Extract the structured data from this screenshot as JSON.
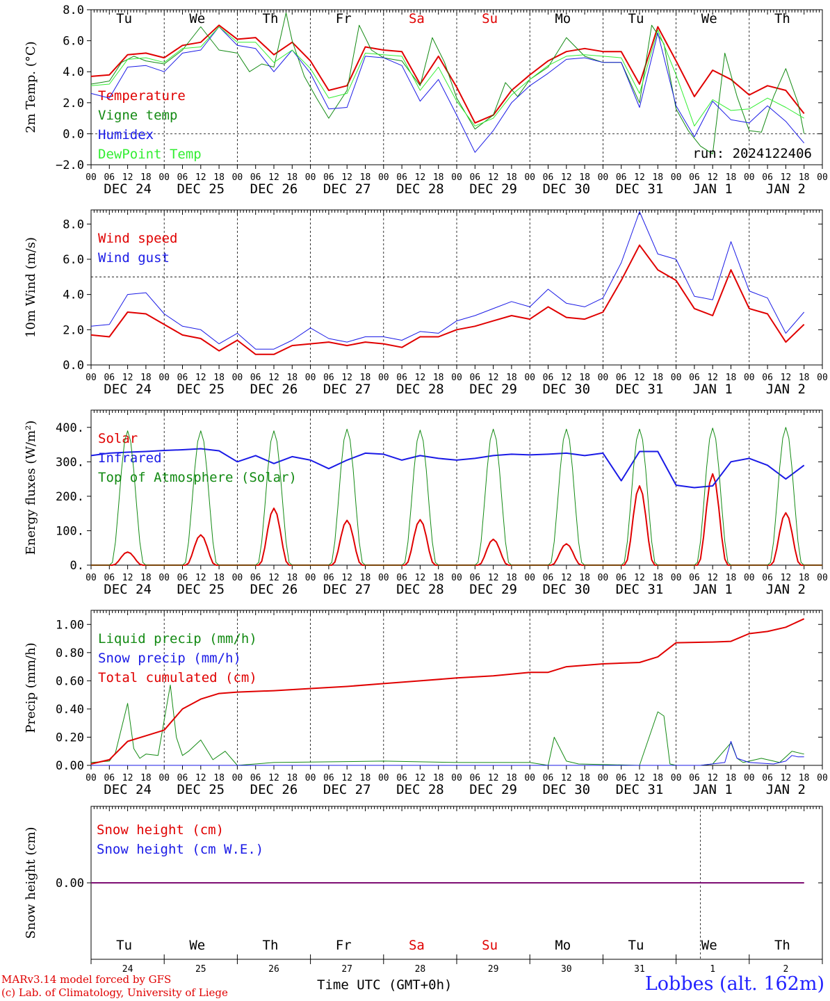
{
  "colors": {
    "red": "#e00000",
    "green": "#138a13",
    "blue": "#1a1ae6",
    "light_green": "#33ee33",
    "black": "#000000"
  },
  "weekdays": [
    {
      "label": "Tu",
      "color": "#000000"
    },
    {
      "label": "We",
      "color": "#000000"
    },
    {
      "label": "Th",
      "color": "#000000"
    },
    {
      "label": "Fr",
      "color": "#000000"
    },
    {
      "label": "Sa",
      "color": "#e00000"
    },
    {
      "label": "Su",
      "color": "#e00000"
    },
    {
      "label": "Mo",
      "color": "#000000"
    },
    {
      "label": "Tu",
      "color": "#000000"
    },
    {
      "label": "We",
      "color": "#000000"
    },
    {
      "label": "Th",
      "color": "#000000"
    }
  ],
  "date_labels": [
    "DEC 24",
    "DEC 25",
    "DEC 26",
    "DEC 27",
    "DEC 28",
    "DEC 29",
    "DEC 30",
    "DEC 31",
    "JAN  1",
    "JAN  2"
  ],
  "hour_ticks": [
    "00",
    "06",
    "12",
    "18"
  ],
  "bottom_days": [
    "24",
    "25",
    "26",
    "27",
    "28",
    "29",
    "30",
    "31",
    "1",
    "2"
  ],
  "run_label": "run: 2024122406",
  "footer": {
    "credit_line1": "MARv3.14 model forced by GFS",
    "credit_line2": "(c) Lab. of Climatology, University of Liege",
    "xaxis_title": "Time UTC (GMT+0h)",
    "station": "Lobbes (alt. 162m)"
  },
  "chart_data": [
    {
      "type": "line",
      "ylabel": "2m Temp. (°C)",
      "ylim": [
        -2,
        8
      ],
      "yticks": [
        "8.0",
        "6.0",
        "4.0",
        "2.0",
        "0.0",
        "−2.0"
      ],
      "ytick_values": [
        8,
        6,
        4,
        2,
        0,
        -2
      ],
      "ref_line": 0,
      "x_unit": "hours since Dec 24 00 UTC",
      "series": [
        {
          "name": "Temperature",
          "color": "#e00000",
          "width": 2,
          "x": [
            0,
            6,
            12,
            18,
            24,
            30,
            36,
            42,
            48,
            54,
            60,
            66,
            72,
            78,
            84,
            90,
            96,
            102,
            108,
            114,
            120,
            126,
            132,
            138,
            144,
            150,
            156,
            162,
            168,
            174,
            180,
            186,
            192,
            198,
            204,
            210,
            216,
            222,
            228,
            234
          ],
          "values": [
            3.7,
            3.8,
            5.1,
            5.2,
            4.9,
            5.7,
            5.9,
            7.0,
            6.1,
            6.2,
            5.1,
            5.9,
            4.7,
            2.8,
            3.1,
            5.6,
            5.4,
            5.3,
            3.2,
            5.0,
            3.0,
            0.7,
            1.2,
            2.8,
            3.8,
            4.7,
            5.3,
            5.5,
            5.3,
            5.3,
            3.2,
            6.9,
            4.7,
            2.4,
            4.1,
            3.5,
            2.5,
            3.1,
            2.8,
            1.3
          ]
        },
        {
          "name": "Vigne temp",
          "color": "#138a13",
          "width": 1,
          "x": [
            0,
            6,
            10,
            14,
            18,
            24,
            30,
            36,
            42,
            48,
            52,
            56,
            60,
            64,
            66,
            70,
            74,
            78,
            84,
            88,
            92,
            96,
            102,
            108,
            112,
            116,
            120,
            126,
            132,
            136,
            140,
            144,
            150,
            156,
            162,
            168,
            174,
            180,
            184,
            188,
            192,
            196,
            200,
            204,
            208,
            212,
            216,
            220,
            224,
            228,
            232,
            234
          ],
          "values": [
            3.2,
            3.4,
            4.6,
            5.0,
            4.7,
            4.5,
            5.4,
            6.9,
            5.4,
            5.2,
            4.0,
            4.5,
            4.3,
            7.8,
            6.0,
            3.7,
            2.3,
            1.0,
            2.8,
            7.0,
            5.4,
            4.9,
            4.7,
            3.1,
            6.2,
            4.6,
            2.3,
            0.3,
            1.2,
            3.3,
            2.4,
            3.5,
            4.3,
            6.2,
            5.0,
            4.6,
            4.6,
            2.0,
            7.0,
            5.8,
            1.6,
            0.2,
            -0.8,
            -1.3,
            5.2,
            2.4,
            0.2,
            0.1,
            2.4,
            4.2,
            2.0,
            0.0
          ]
        },
        {
          "name": "Humidex",
          "color": "#1a1ae6",
          "width": 1,
          "x": [
            0,
            6,
            12,
            18,
            24,
            30,
            36,
            42,
            48,
            54,
            60,
            66,
            72,
            78,
            84,
            90,
            96,
            102,
            108,
            114,
            120,
            126,
            132,
            138,
            144,
            150,
            156,
            162,
            168,
            174,
            180,
            186,
            192,
            198,
            204,
            210,
            216,
            222,
            228,
            234
          ],
          "values": [
            2.6,
            2.3,
            4.3,
            4.4,
            4.0,
            5.2,
            5.4,
            6.9,
            5.7,
            5.5,
            4.0,
            5.4,
            3.9,
            1.6,
            1.7,
            5.0,
            4.9,
            4.4,
            2.1,
            3.5,
            1.2,
            -1.2,
            0.2,
            2.0,
            3.1,
            3.9,
            4.8,
            4.9,
            4.6,
            4.6,
            1.7,
            6.5,
            1.8,
            -0.2,
            2.1,
            0.9,
            0.7,
            1.8,
            0.8,
            -0.6
          ]
        },
        {
          "name": "DewPoint Temp",
          "color": "#33ee33",
          "width": 1,
          "x": [
            0,
            6,
            12,
            18,
            24,
            30,
            36,
            42,
            48,
            54,
            60,
            66,
            72,
            78,
            84,
            90,
            96,
            102,
            108,
            114,
            120,
            126,
            132,
            138,
            144,
            150,
            156,
            162,
            168,
            174,
            180,
            186,
            192,
            198,
            204,
            210,
            216,
            222,
            228,
            234
          ],
          "values": [
            3.1,
            3.2,
            4.8,
            4.9,
            4.6,
            5.5,
            5.6,
            6.9,
            5.9,
            5.9,
            4.6,
            5.4,
            4.2,
            2.3,
            2.6,
            5.2,
            5.1,
            5.0,
            2.8,
            4.3,
            2.1,
            0.5,
            1.0,
            2.5,
            3.5,
            4.4,
            5.0,
            5.1,
            5.0,
            4.9,
            2.6,
            6.7,
            3.8,
            0.5,
            2.2,
            1.5,
            1.6,
            2.3,
            1.7,
            1.0
          ]
        }
      ]
    },
    {
      "type": "line",
      "ylabel": "10m Wind (m/s)",
      "ylim": [
        0,
        8.8
      ],
      "yticks": [
        "8.0",
        "6.0",
        "4.0",
        "2.0",
        "0.0"
      ],
      "ytick_values": [
        8,
        6,
        4,
        2,
        0
      ],
      "ref_line": 5,
      "series": [
        {
          "name": "Wind speed",
          "color": "#e00000",
          "width": 2,
          "x": [
            0,
            6,
            12,
            18,
            24,
            30,
            36,
            42,
            48,
            54,
            60,
            66,
            72,
            78,
            84,
            90,
            96,
            102,
            108,
            114,
            120,
            126,
            132,
            138,
            144,
            150,
            156,
            162,
            168,
            174,
            180,
            186,
            192,
            198,
            204,
            210,
            216,
            222,
            228,
            234
          ],
          "values": [
            1.7,
            1.6,
            3.0,
            2.9,
            2.3,
            1.7,
            1.5,
            0.8,
            1.4,
            0.6,
            0.6,
            1.1,
            1.2,
            1.3,
            1.1,
            1.3,
            1.2,
            1.0,
            1.6,
            1.6,
            2.0,
            2.2,
            2.5,
            2.8,
            2.6,
            3.3,
            2.7,
            2.6,
            3.0,
            4.8,
            6.8,
            5.4,
            4.8,
            3.2,
            2.8,
            5.4,
            3.2,
            2.9,
            1.3,
            2.3
          ]
        },
        {
          "name": "Wind gust",
          "color": "#1a1ae6",
          "width": 1,
          "x": [
            0,
            6,
            12,
            18,
            24,
            30,
            36,
            42,
            48,
            54,
            60,
            66,
            72,
            78,
            84,
            90,
            96,
            102,
            108,
            114,
            120,
            126,
            132,
            138,
            144,
            150,
            156,
            162,
            168,
            174,
            180,
            186,
            192,
            198,
            204,
            210,
            216,
            222,
            228,
            234
          ],
          "values": [
            2.2,
            2.3,
            4.0,
            4.1,
            2.9,
            2.2,
            2.0,
            1.2,
            1.8,
            0.9,
            0.9,
            1.4,
            2.1,
            1.5,
            1.3,
            1.6,
            1.6,
            1.4,
            1.9,
            1.8,
            2.5,
            2.8,
            3.2,
            3.6,
            3.3,
            4.3,
            3.5,
            3.3,
            3.8,
            5.8,
            8.7,
            6.3,
            6.0,
            3.9,
            3.7,
            7.0,
            4.2,
            3.8,
            1.8,
            3.0
          ]
        }
      ]
    },
    {
      "type": "line",
      "ylabel": "Energy fluxes (W/m²)",
      "ylim": [
        0,
        450
      ],
      "yticks": [
        "400.",
        "300.",
        "200.",
        "100.",
        "0."
      ],
      "ytick_values": [
        400,
        300,
        200,
        100,
        0
      ],
      "series": [
        {
          "name": "Solar",
          "color": "#e00000",
          "width": 2,
          "peak_hours": [
            12,
            36,
            60,
            84,
            108,
            132,
            156,
            180,
            204,
            228
          ],
          "peaks": [
            38,
            88,
            165,
            130,
            132,
            75,
            62,
            230,
            265,
            152
          ]
        },
        {
          "name": "Infrared",
          "color": "#1a1ae6",
          "width": 2,
          "x": [
            0,
            6,
            12,
            18,
            24,
            30,
            36,
            42,
            48,
            54,
            60,
            66,
            72,
            78,
            84,
            90,
            96,
            102,
            108,
            114,
            120,
            126,
            132,
            138,
            144,
            150,
            156,
            162,
            168,
            174,
            180,
            186,
            192,
            198,
            204,
            210,
            216,
            222,
            228,
            234
          ],
          "values": [
            318,
            325,
            328,
            330,
            333,
            335,
            338,
            332,
            300,
            318,
            295,
            315,
            305,
            280,
            305,
            325,
            322,
            305,
            318,
            310,
            305,
            310,
            318,
            322,
            320,
            322,
            325,
            318,
            325,
            245,
            330,
            330,
            232,
            225,
            230,
            300,
            310,
            290,
            250,
            290
          ]
        },
        {
          "name": "Top of Atmosphere (Solar)",
          "color": "#138a13",
          "width": 1,
          "peak_hours": [
            12,
            36,
            60,
            84,
            108,
            132,
            156,
            180,
            204,
            228
          ],
          "peaks": [
            390,
            390,
            390,
            395,
            392,
            395,
            395,
            395,
            398,
            400
          ]
        }
      ]
    },
    {
      "type": "line",
      "ylabel": "Precip (mm/h)",
      "ylim": [
        0,
        1.1
      ],
      "yticks": [
        "1.00",
        "0.80",
        "0.60",
        "0.40",
        "0.20",
        "0.00"
      ],
      "ytick_values": [
        1,
        0.8,
        0.6,
        0.4,
        0.2,
        0
      ],
      "series": [
        {
          "name": "Liquid precip (mm/h)",
          "color": "#138a13",
          "width": 1,
          "x": [
            0,
            6,
            8,
            12,
            14,
            16,
            18,
            22,
            26,
            28,
            30,
            32,
            36,
            40,
            44,
            48,
            60,
            96,
            120,
            144,
            150,
            152,
            156,
            160,
            180,
            186,
            188,
            190,
            192,
            200,
            204,
            210,
            212,
            214,
            220,
            226,
            230,
            234
          ],
          "values": [
            0.02,
            0.03,
            0.09,
            0.44,
            0.12,
            0.05,
            0.08,
            0.07,
            0.57,
            0.2,
            0.07,
            0.1,
            0.18,
            0.04,
            0.1,
            0.0,
            0.02,
            0.03,
            0.02,
            0.02,
            0.0,
            0.2,
            0.03,
            0.01,
            0.0,
            0.38,
            0.35,
            0.01,
            0.0,
            0.0,
            0.01,
            0.16,
            0.05,
            0.02,
            0.05,
            0.02,
            0.1,
            0.08
          ]
        },
        {
          "name": "Snow precip (mm/h)",
          "color": "#1a1ae6",
          "width": 1,
          "x": [
            0,
            200,
            208,
            210,
            212,
            216,
            224,
            228,
            230,
            232,
            234
          ],
          "values": [
            0.0,
            0.0,
            0.02,
            0.17,
            0.05,
            0.02,
            0.01,
            0.03,
            0.07,
            0.06,
            0.06
          ]
        },
        {
          "name": "Total cumulated (cm)",
          "color": "#e00000",
          "width": 2,
          "x": [
            0,
            6,
            12,
            18,
            24,
            30,
            36,
            42,
            48,
            60,
            72,
            84,
            96,
            108,
            120,
            132,
            144,
            150,
            156,
            168,
            180,
            186,
            192,
            204,
            210,
            216,
            222,
            228,
            234
          ],
          "values": [
            0.01,
            0.04,
            0.17,
            0.21,
            0.25,
            0.4,
            0.47,
            0.51,
            0.52,
            0.53,
            0.545,
            0.56,
            0.58,
            0.6,
            0.62,
            0.635,
            0.66,
            0.66,
            0.7,
            0.72,
            0.73,
            0.77,
            0.87,
            0.875,
            0.88,
            0.935,
            0.95,
            0.98,
            1.04
          ]
        }
      ]
    },
    {
      "type": "line",
      "ylabel": "Snow height (cm)",
      "ylim": [
        -1,
        1
      ],
      "yticks": [
        "0.00"
      ],
      "ytick_values": [
        0
      ],
      "series": [
        {
          "name": "Snow height (cm)",
          "color": "#e00000",
          "width": 2,
          "x": [
            0,
            234
          ],
          "values": [
            0,
            0
          ]
        },
        {
          "name": "Snow height (cm W.E.)",
          "color": "#1a1ae6",
          "width": 1,
          "x": [
            0,
            234
          ],
          "values": [
            0,
            0
          ]
        }
      ]
    }
  ]
}
